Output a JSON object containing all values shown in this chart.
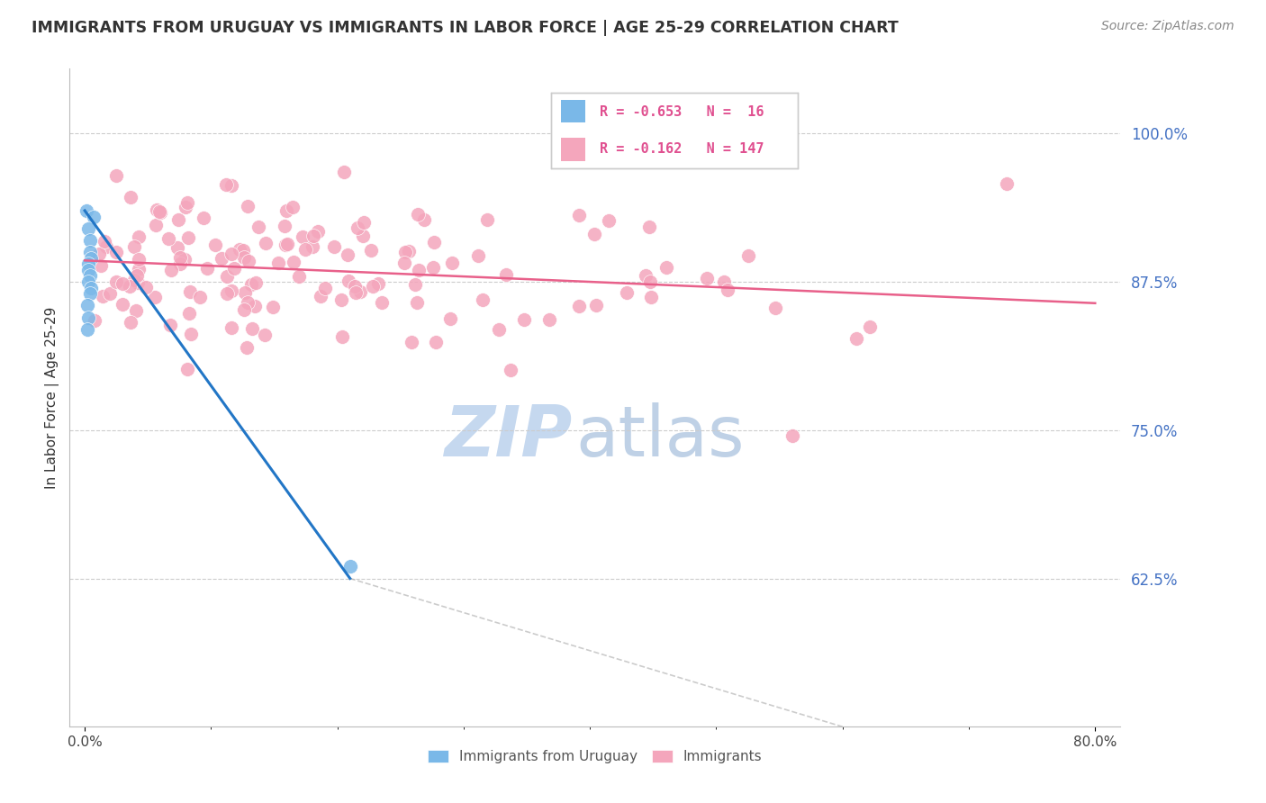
{
  "title": "IMMIGRANTS FROM URUGUAY VS IMMIGRANTS IN LABOR FORCE | AGE 25-29 CORRELATION CHART",
  "source": "Source: ZipAtlas.com",
  "ylabel": "In Labor Force | Age 25-29",
  "y_tick_labels": [
    "100.0%",
    "87.5%",
    "75.0%",
    "62.5%"
  ],
  "y_ticks": [
    1.0,
    0.875,
    0.75,
    0.625
  ],
  "xlim": [
    0.0,
    0.8
  ],
  "ylim": [
    0.5,
    1.05
  ],
  "legend_blue_r": "-0.653",
  "legend_blue_n": "16",
  "legend_pink_r": "-0.162",
  "legend_pink_n": "147",
  "blue_color": "#7ab8e8",
  "pink_color": "#f4a6bc",
  "blue_line_color": "#2276c6",
  "pink_line_color": "#e8608a",
  "watermark_zip_color": "#c5d8ef",
  "watermark_atlas_color": "#b8cce4",
  "blue_points_x": [
    0.001,
    0.007,
    0.003,
    0.004,
    0.004,
    0.005,
    0.003,
    0.003,
    0.004,
    0.003,
    0.005,
    0.004,
    0.002,
    0.003,
    0.002,
    0.21
  ],
  "blue_points_y": [
    0.935,
    0.93,
    0.92,
    0.91,
    0.9,
    0.895,
    0.89,
    0.885,
    0.88,
    0.875,
    0.87,
    0.865,
    0.855,
    0.845,
    0.835,
    0.635
  ],
  "blue_line_x": [
    0.0,
    0.21
  ],
  "blue_line_y": [
    0.935,
    0.625
  ],
  "pink_line_x": [
    0.0,
    0.8
  ],
  "pink_line_y": [
    0.893,
    0.857
  ],
  "diag_line_x": [
    0.21,
    0.6
  ],
  "diag_line_y": [
    0.625,
    0.5
  ],
  "x_axis_labels_left": "0.0%",
  "x_axis_labels_right": "80.0%"
}
